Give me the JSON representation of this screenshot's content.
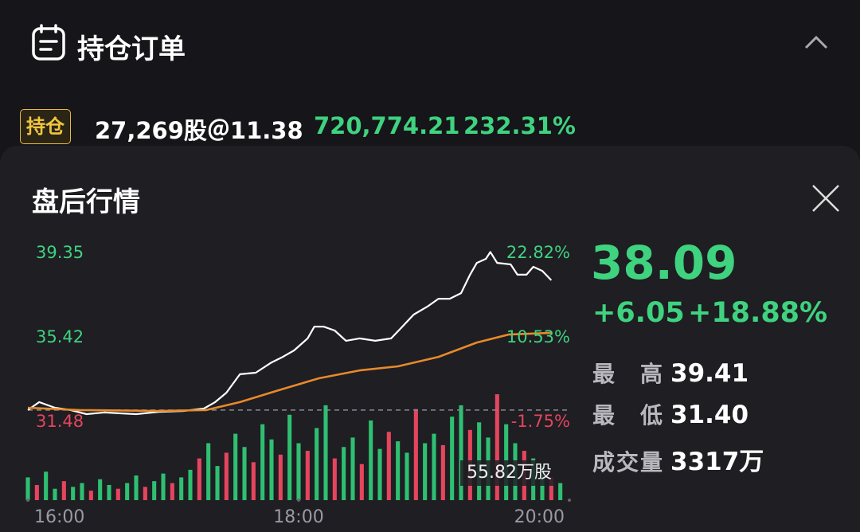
{
  "header": {
    "title": "持仓订单"
  },
  "position": {
    "badge": "持仓",
    "shares": "27,269股＠11.38",
    "value": "720,774.21",
    "pnl_pct": "232.31%"
  },
  "panel": {
    "title": "盘后行情",
    "quote": {
      "price": "38.09",
      "change": "+6.05",
      "change_pct": "+18.88%"
    },
    "stats": [
      {
        "label": "最高",
        "value": "39.41"
      },
      {
        "label": "最低",
        "value": "31.40"
      },
      {
        "label": "成交量",
        "value": "3317万"
      }
    ]
  },
  "chart_data": {
    "type": "line",
    "xlim": [
      0,
      240
    ],
    "xticks": [
      {
        "value": 0,
        "label": "16:00"
      },
      {
        "value": 120,
        "label": "18:00"
      },
      {
        "value": 240,
        "label": "20:00"
      }
    ],
    "ylim": [
      31.48,
      39.35
    ],
    "yticks": [
      39.35,
      35.42,
      31.48
    ],
    "y2lim": [
      -1.75,
      22.82
    ],
    "y2ticks": [
      {
        "value": 22.82,
        "label": "22.82%"
      },
      {
        "value": 10.53,
        "label": "10.53%"
      },
      {
        "value": -1.75,
        "label": "-1.75%"
      }
    ],
    "series": [
      {
        "color": "#ffffff",
        "x": [
          0,
          5,
          12,
          19,
          26,
          34,
          41,
          48,
          58,
          69,
          78,
          83,
          88,
          94,
          101,
          108,
          113,
          118,
          124,
          127,
          131,
          136,
          141,
          147,
          154,
          161,
          166,
          171,
          177,
          182,
          187,
          192,
          196,
          199,
          203,
          205,
          208,
          214,
          217,
          221,
          224,
          228,
          232
        ],
        "values": [
          32.04,
          32.41,
          32.15,
          32.04,
          31.85,
          31.93,
          31.89,
          31.85,
          31.96,
          32.0,
          32.11,
          32.41,
          32.85,
          33.71,
          33.78,
          34.26,
          34.52,
          34.82,
          35.38,
          35.93,
          35.93,
          35.75,
          35.27,
          35.38,
          35.27,
          35.38,
          35.93,
          36.49,
          36.86,
          37.23,
          37.23,
          37.49,
          38.35,
          38.9,
          39.09,
          39.41,
          38.9,
          38.83,
          38.35,
          38.35,
          38.72,
          38.53,
          38.09
        ]
      },
      {
        "color": "#e8892a",
        "x": [
          0,
          23,
          58,
          79,
          94,
          111,
          129,
          147,
          164,
          182,
          199,
          213,
          232
        ],
        "values": [
          32.15,
          32.04,
          32.0,
          32.04,
          32.41,
          32.96,
          33.52,
          33.89,
          34.08,
          34.52,
          35.19,
          35.56,
          35.64
        ]
      }
    ],
    "volume": {
      "ylim": [
        0,
        55.82
      ],
      "yticks": [
        {
          "value": 55.82,
          "label": "55.82万股"
        }
      ],
      "x": [
        0,
        4,
        8,
        12,
        16,
        20,
        24,
        28,
        32,
        36,
        40,
        44,
        48,
        52,
        56,
        60,
        64,
        68,
        72,
        76,
        80,
        84,
        88,
        92,
        96,
        100,
        104,
        108,
        112,
        116,
        120,
        124,
        128,
        132,
        136,
        140,
        144,
        148,
        152,
        156,
        160,
        164,
        168,
        172,
        176,
        180,
        184,
        188,
        192,
        196,
        200,
        204,
        208,
        212,
        216,
        220,
        224,
        228,
        232,
        236
      ],
      "series": [
        {
          "color": "#2fbf71",
          "values": [
            12,
            null,
            15,
            6,
            null,
            7,
            9,
            null,
            11,
            8,
            null,
            9,
            13,
            null,
            10,
            14,
            null,
            12,
            16,
            null,
            30,
            18,
            null,
            35,
            28,
            null,
            40,
            32,
            null,
            45,
            30,
            null,
            38,
            50,
            null,
            28,
            33,
            null,
            42,
            27,
            null,
            31,
            25,
            null,
            30,
            35,
            null,
            44,
            50,
            null,
            41,
            33,
            null,
            40,
            30,
            null,
            22,
            18,
            null,
            9
          ]
        },
        {
          "color": "#e5455d",
          "values": [
            null,
            8,
            null,
            null,
            10,
            null,
            null,
            5,
            null,
            null,
            6,
            null,
            null,
            7,
            null,
            null,
            9,
            null,
            null,
            22,
            null,
            null,
            25,
            null,
            null,
            20,
            null,
            null,
            24,
            null,
            null,
            26,
            null,
            null,
            22,
            null,
            null,
            19,
            null,
            null,
            36,
            null,
            null,
            48,
            null,
            null,
            29,
            null,
            null,
            37,
            null,
            null,
            55.82,
            null,
            null,
            26,
            null,
            null,
            12,
            null
          ]
        }
      ]
    }
  }
}
